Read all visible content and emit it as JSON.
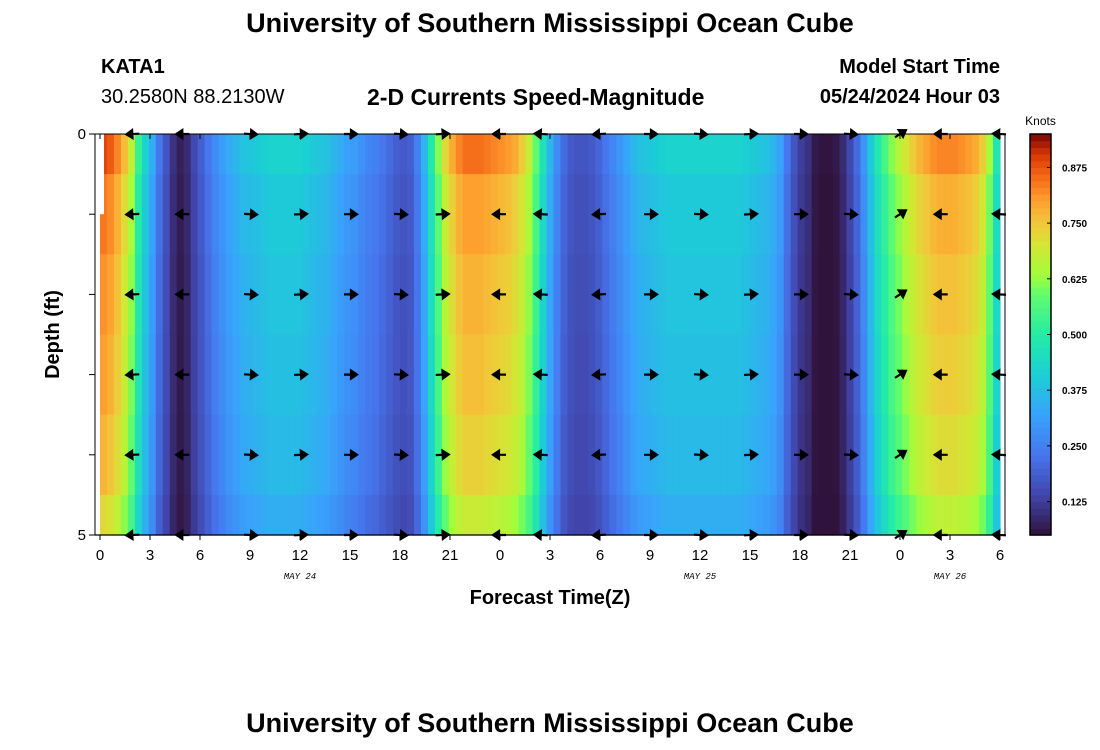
{
  "header": {
    "title": "University of Southern Mississippi Ocean Cube",
    "station_id": "KATA1",
    "coordinates": "30.2580N  88.2130W",
    "chart_title": "2-D Currents Speed-Magnitude",
    "model_start_label": "Model Start Time",
    "model_start_value": "05/24/2024 Hour 03"
  },
  "footer": {
    "title": "University of Southern Mississippi Ocean Cube"
  },
  "colors": {
    "background": "#ffffff",
    "arrows": "#000000"
  },
  "chart_data": {
    "type": "heatmap",
    "title": "2-D Currents Speed-Magnitude",
    "xlabel": "Forecast Time(Z)",
    "ylabel": "Depth (ft)",
    "x_tick_labels": [
      "0",
      "3",
      "6",
      "9",
      "12",
      "15",
      "18",
      "21",
      "0",
      "3",
      "6",
      "9",
      "12",
      "15",
      "18",
      "21",
      "0",
      "3",
      "6"
    ],
    "x_range_hours": [
      0,
      54
    ],
    "date_labels": [
      {
        "label": "MAY 24",
        "hour": 12
      },
      {
        "label": "MAY 25",
        "hour": 36
      },
      {
        "label": "MAY 26",
        "hour": 51
      }
    ],
    "y_tick_labels": [
      "0",
      "5"
    ],
    "y_range_ft": [
      0,
      5
    ],
    "colorbar": {
      "unit": "Knots",
      "ticks": [
        "0.125",
        "0.250",
        "0.375",
        "0.500",
        "0.625",
        "0.750",
        "0.875"
      ],
      "tick_values": [
        0.125,
        0.25,
        0.375,
        0.5,
        0.625,
        0.75,
        0.875
      ],
      "range": [
        0.05,
        0.95
      ],
      "colormap": "turbo"
    },
    "speed_knots_by_hour": [
      0.84,
      0.82,
      0.78,
      0.72,
      0.64,
      0.5,
      0.4,
      0.32,
      0.22,
      0.16,
      0.1,
      0.07,
      0.09,
      0.14,
      0.18,
      0.22,
      0.26,
      0.29,
      0.32,
      0.34,
      0.36,
      0.37,
      0.38,
      0.39,
      0.4,
      0.4,
      0.4,
      0.4,
      0.4,
      0.39,
      0.38,
      0.37,
      0.36,
      0.34,
      0.32,
      0.3,
      0.29,
      0.27,
      0.25,
      0.24,
      0.22,
      0.2,
      0.18,
      0.17,
      0.18,
      0.24,
      0.34,
      0.46,
      0.58,
      0.68,
      0.74,
      0.78,
      0.8,
      0.8,
      0.8,
      0.79,
      0.78,
      0.77,
      0.76,
      0.74,
      0.7,
      0.64,
      0.55,
      0.44,
      0.34,
      0.26,
      0.2,
      0.17,
      0.16,
      0.16,
      0.17,
      0.19,
      0.22,
      0.25,
      0.28,
      0.31,
      0.34,
      0.36,
      0.37,
      0.38,
      0.39,
      0.4,
      0.4,
      0.4,
      0.4,
      0.4,
      0.4,
      0.4,
      0.4,
      0.4,
      0.4,
      0.4,
      0.39,
      0.38,
      0.37,
      0.36,
      0.34,
      0.3,
      0.22,
      0.16,
      0.12,
      0.1,
      0.06,
      0.05,
      0.05,
      0.06,
      0.09,
      0.14,
      0.2,
      0.28,
      0.38,
      0.46,
      0.52,
      0.58,
      0.62,
      0.66,
      0.7,
      0.73,
      0.75,
      0.77,
      0.78,
      0.78,
      0.78,
      0.77,
      0.76,
      0.74,
      0.7,
      0.6,
      0.45
    ],
    "depth_levels_ft": [
      0,
      1,
      2,
      3,
      4,
      5
    ],
    "depth_speed_factor": [
      1.06,
      1.0,
      0.97,
      0.95,
      0.92,
      0.86
    ],
    "arrow_hours": [
      2,
      5,
      9,
      12,
      15,
      18,
      20.5,
      24,
      26.5,
      30,
      33,
      36,
      39,
      42,
      45,
      48,
      50.5,
      54
    ],
    "arrow_depths_ft": [
      0,
      1,
      2,
      3,
      4,
      5
    ],
    "arrow_directions": [
      "W",
      "W",
      "E",
      "E",
      "E",
      "E",
      "E",
      "W",
      "W",
      "W",
      "E",
      "E",
      "E",
      "E",
      "E",
      "NE",
      "W",
      "W"
    ]
  }
}
